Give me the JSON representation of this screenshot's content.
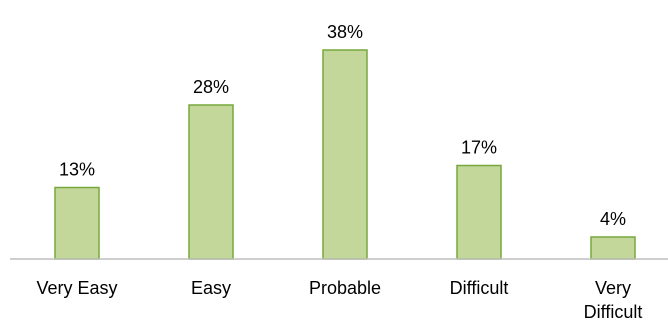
{
  "chart_data": {
    "type": "bar",
    "categories": [
      [
        "Very Easy"
      ],
      [
        "Easy"
      ],
      [
        "Probable"
      ],
      [
        "Difficult"
      ],
      [
        "Very",
        "Difficult"
      ]
    ],
    "values": [
      13,
      28,
      38,
      17,
      4
    ],
    "value_labels": [
      "13%",
      "28%",
      "38%",
      "17%",
      "4%"
    ],
    "unit": "%",
    "ylim": [
      0,
      40
    ],
    "grid": false,
    "legend": "none",
    "colors": {
      "bar_fill": "#c4d79b",
      "bar_stroke": "#77a83d",
      "axis": "#bfbfbf"
    }
  }
}
